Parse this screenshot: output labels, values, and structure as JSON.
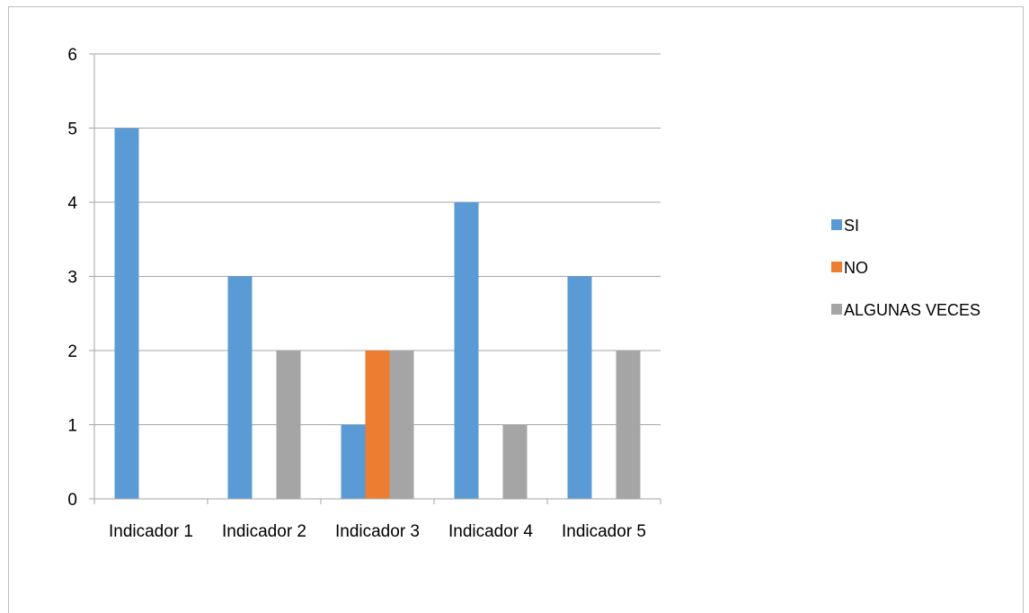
{
  "chart_data": {
    "type": "bar",
    "categories": [
      "Indicador 1",
      "Indicador 2",
      "Indicador 3",
      "Indicador 4",
      "Indicador 5"
    ],
    "series": [
      {
        "name": "SI",
        "color": "#5b9bd5",
        "values": [
          5,
          3,
          1,
          4,
          3
        ]
      },
      {
        "name": "NO",
        "color": "#ed7d31",
        "values": [
          0,
          0,
          2,
          0,
          0
        ]
      },
      {
        "name": "ALGUNAS VECES",
        "color": "#a5a5a5",
        "values": [
          0,
          2,
          2,
          1,
          2
        ]
      }
    ],
    "y_ticks": [
      0,
      1,
      2,
      3,
      4,
      5,
      6
    ],
    "ylim": [
      0,
      6
    ],
    "grid": true,
    "legend_position": "right",
    "gridline_color": "#a6a6a6"
  }
}
